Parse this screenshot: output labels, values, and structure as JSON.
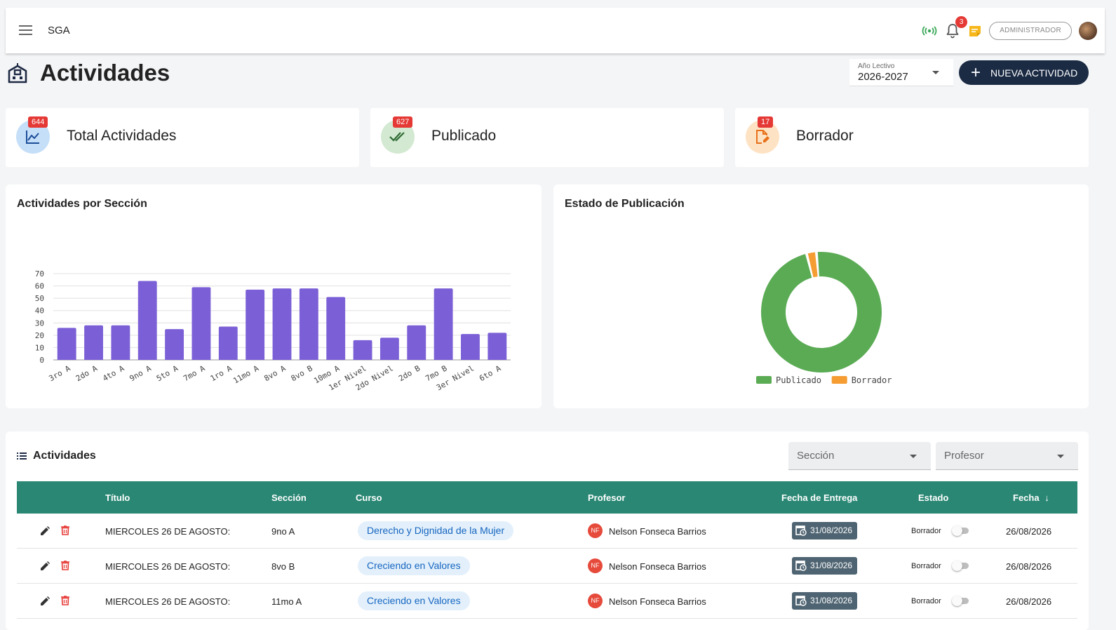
{
  "app": {
    "name": "SGA"
  },
  "topbar": {
    "notification_count": "3",
    "role": "ADMINISTRADOR"
  },
  "page": {
    "title": "Actividades"
  },
  "year_select": {
    "label": "Año Lectivo",
    "value": "2026-2027"
  },
  "new_button": {
    "label": "NUEVA ACTIVIDAD"
  },
  "stats": [
    {
      "label": "Total Actividades",
      "count": "644",
      "icon": "chart-line-icon",
      "color": "#bbdefb"
    },
    {
      "label": "Publicado",
      "count": "627",
      "icon": "double-check-icon",
      "color": "#c8e6c9"
    },
    {
      "label": "Borrador",
      "count": "17",
      "icon": "edit-document-icon",
      "color": "#ffe0b2"
    }
  ],
  "bar_panel": {
    "title": "Actividades por Sección"
  },
  "donut_panel": {
    "title": "Estado de Publicación"
  },
  "chart_data": [
    {
      "type": "bar",
      "title": "Actividades por Sección",
      "categories": [
        "3ro A",
        "2do A",
        "4to A",
        "9no A",
        "5to A",
        "7mo A",
        "1ro A",
        "11mo A",
        "8vo A",
        "8vo B",
        "10mo A",
        "1er Nivel",
        "2do Nivel",
        "2do B",
        "7mo B",
        "3er Nivel",
        "6to A"
      ],
      "values": [
        26,
        28,
        28,
        64,
        25,
        59,
        27,
        57,
        58,
        58,
        51,
        16,
        18,
        28,
        58,
        21,
        22
      ],
      "ylim": [
        0,
        70
      ],
      "yticks": [
        0,
        10,
        20,
        30,
        40,
        50,
        60,
        70
      ],
      "color": "#7b5fd6",
      "grid": true
    },
    {
      "type": "pie",
      "title": "Estado de Publicación",
      "labels": [
        "Publicado",
        "Borrador"
      ],
      "values": [
        627,
        17
      ],
      "colors": [
        "#5aab54",
        "#f59d32"
      ],
      "legend": "bottom"
    }
  ],
  "table": {
    "title": "Actividades",
    "filters": {
      "section": "Sección",
      "teacher": "Profesor"
    },
    "columns": {
      "title": "Título",
      "section": "Sección",
      "course": "Curso",
      "teacher": "Profesor",
      "due": "Fecha de Entrega",
      "status": "Estado",
      "date": "Fecha"
    },
    "rows": [
      {
        "title": "MIERCOLES 26 DE AGOSTO:",
        "section": "9no A",
        "course": "Derecho y Dignidad de la Mujer",
        "initials": "NF",
        "teacher": "Nelson Fonseca Barrios",
        "due": "31/08/2026",
        "status": "Borrador",
        "date": "26/08/2026"
      },
      {
        "title": "MIERCOLES 26 DE AGOSTO:",
        "section": "8vo B",
        "course": "Creciendo en Valores",
        "initials": "NF",
        "teacher": "Nelson Fonseca Barrios",
        "due": "31/08/2026",
        "status": "Borrador",
        "date": "26/08/2026"
      },
      {
        "title": "MIERCOLES 26 DE AGOSTO:",
        "section": "11mo A",
        "course": "Creciendo en Valores",
        "initials": "NF",
        "teacher": "Nelson Fonseca Barrios",
        "due": "31/08/2026",
        "status": "Borrador",
        "date": "26/08/2026"
      }
    ]
  }
}
